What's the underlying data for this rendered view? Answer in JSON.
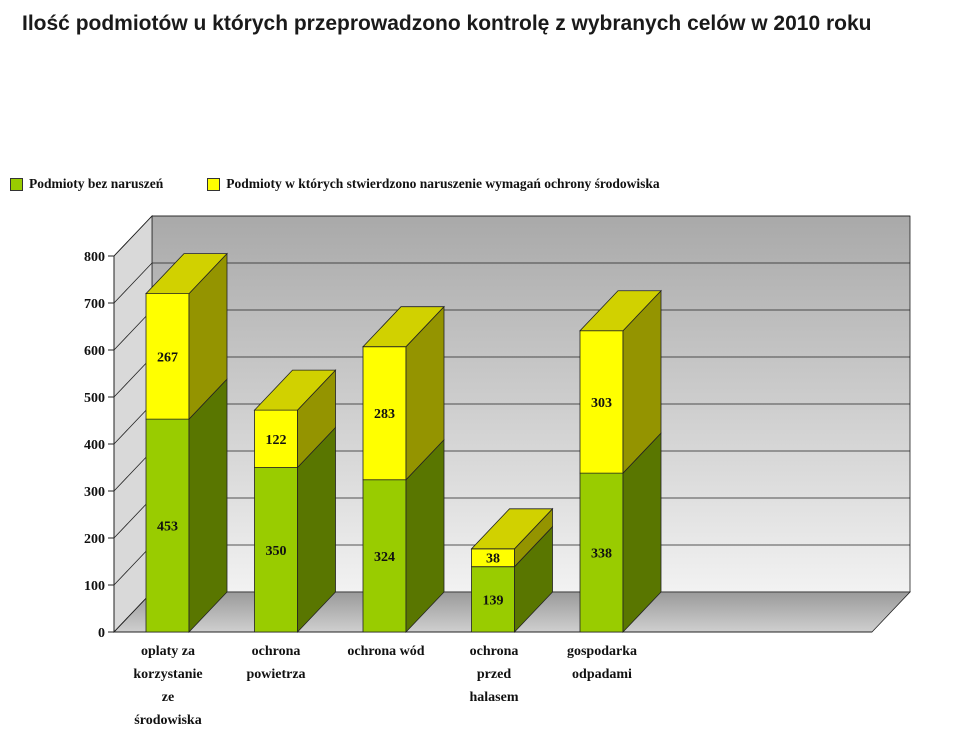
{
  "chart_data": {
    "type": "bar",
    "stacked": true,
    "style": "3d",
    "title": "Ilość podmiotów u których przeprowadzono kontrolę z wybranych celów w 2010 roku",
    "categories": [
      "oplaty za korzystanie ze środowiska",
      "ochrona powietrza",
      "ochrona wód",
      "ochrona przed halasem",
      "gospodarka odpadami"
    ],
    "series": [
      {
        "name": "Podmioty bez naruszeń",
        "values": [
          453,
          350,
          324,
          139,
          338
        ],
        "color": "#99cc00"
      },
      {
        "name": "Podmioty w których stwierdzono naruszenie wymagań ochrony środowiska",
        "values": [
          267,
          122,
          283,
          38,
          303
        ],
        "color": "#ffff00"
      }
    ],
    "ylim": [
      0,
      800
    ],
    "yticks": [
      0,
      100,
      200,
      300,
      400,
      500,
      600,
      700,
      800
    ],
    "grid": true,
    "legend_position": "top-left"
  }
}
